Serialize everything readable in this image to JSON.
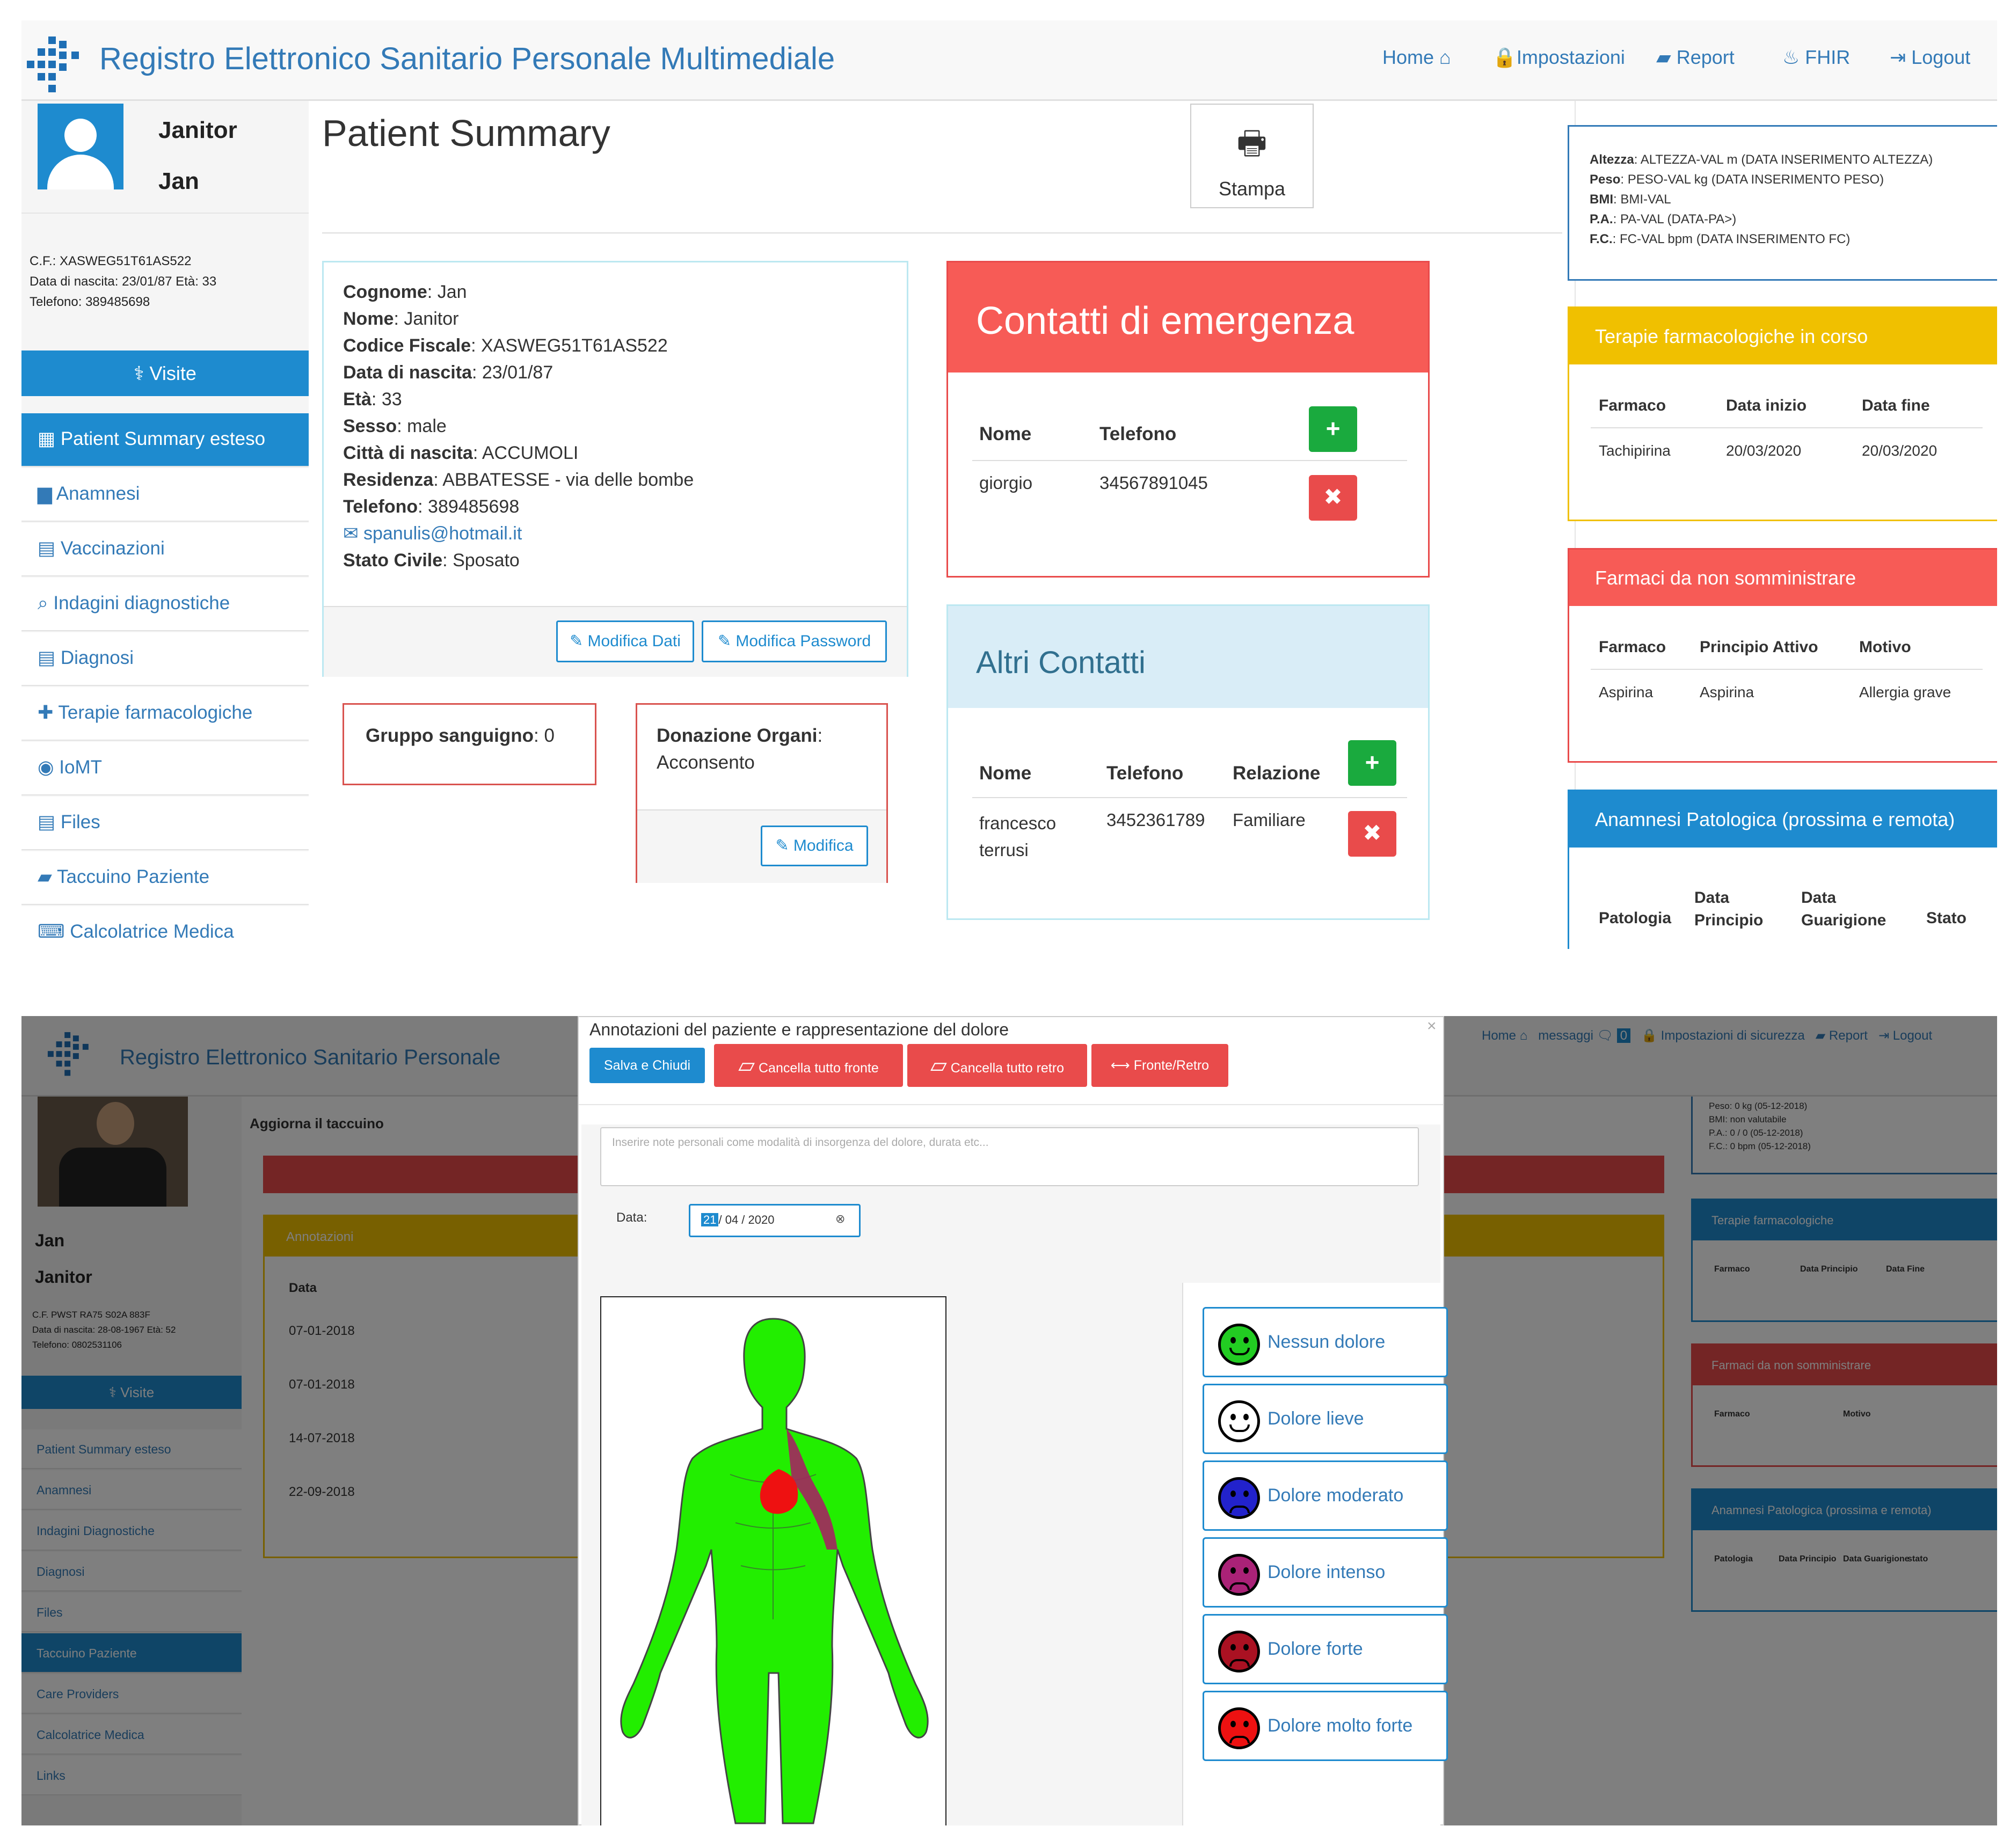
{
  "app": {
    "brand": "Registro Elettronico Sanitario Personale Multimediale",
    "nav": [
      {
        "label": "Home",
        "icon": "home-icon"
      },
      {
        "label": "Impostazioni",
        "icon": "lock-icon"
      },
      {
        "label": "Report",
        "icon": "book-icon"
      },
      {
        "label": "FHIR",
        "icon": "fire-icon"
      },
      {
        "label": "Logout",
        "icon": "logout-icon"
      }
    ]
  },
  "patient_card": {
    "first_name": "Janitor",
    "last_name": "Jan",
    "cf": "C.F.: XASWEG51T61AS522",
    "dob_line": "Data di nascita: 23/01/87 Età: 33",
    "phone_line": "Telefono: 389485698"
  },
  "sidebar": {
    "visits_label": "Visite",
    "items": [
      {
        "label": "Patient Summary esteso",
        "icon": "table-icon",
        "active": true
      },
      {
        "label": "Anamnesi",
        "icon": "archive-icon"
      },
      {
        "label": "Vaccinazioni",
        "icon": "file-icon"
      },
      {
        "label": "Indagini diagnostiche",
        "icon": "search-icon"
      },
      {
        "label": "Diagnosi",
        "icon": "file-icon"
      },
      {
        "label": "Terapie farmacologiche",
        "icon": "medkit-icon"
      },
      {
        "label": "IoMT",
        "icon": "globe-icon"
      },
      {
        "label": "Files",
        "icon": "file-icon"
      },
      {
        "label": "Taccuino Paziente",
        "icon": "book-icon"
      },
      {
        "label": "Calcolatrice Medica",
        "icon": "keyboard-icon"
      }
    ]
  },
  "main": {
    "title": "Patient Summary",
    "print_label": "Stampa",
    "details": [
      {
        "k": "Cognome",
        "v": "Jan"
      },
      {
        "k": "Nome",
        "v": "Janitor"
      },
      {
        "k": "Codice Fiscale",
        "v": "XASWEG51T61AS522"
      },
      {
        "k": "Data di nascita",
        "v": "23/01/87"
      },
      {
        "k": "Età",
        "v": "33"
      },
      {
        "k": "Sesso",
        "v": "male"
      },
      {
        "k": "Città di nascita",
        "v": "ACCUMOLI"
      },
      {
        "k": "Residenza",
        "v": "ABBATESSE  -  via delle bombe"
      },
      {
        "k": "Telefono",
        "v": "389485698"
      }
    ],
    "email": "spanulis@hotmail.it",
    "civil_key": "Stato Civile",
    "civil_val": "Sposato",
    "edit_data": "Modifica Dati",
    "edit_password": "Modifica Password",
    "blood_key": "Gruppo sanguigno",
    "blood_val": "0",
    "organ_key": "Donazione Organi",
    "organ_val": "Acconsento",
    "organ_edit": "Modifica"
  },
  "emergency": {
    "title": "Contatti di emergenza",
    "headers": [
      "Nome",
      "Telefono"
    ],
    "rows": [
      {
        "name": "giorgio",
        "phone": "34567891045"
      }
    ]
  },
  "others": {
    "title": "Altri Contatti",
    "headers": [
      "Nome",
      "Telefono",
      "Relazione"
    ],
    "rows": [
      {
        "name1": "francesco",
        "name2": "terrusi",
        "phone": "3452361789",
        "rel": "Familiare"
      }
    ]
  },
  "right": {
    "vitals": [
      {
        "k": "Altezza",
        "v": "ALTEZZA-VAL m (DATA INSERIMENTO ALTEZZA)"
      },
      {
        "k": "Peso",
        "v": "PESO-VAL kg (DATA INSERIMENTO PESO)"
      },
      {
        "k": "BMI",
        "v": "BMI-VAL"
      },
      {
        "k": "P.A.",
        "v": "PA-VAL (DATA-PA>)"
      },
      {
        "k": "F.C.",
        "v": "FC-VAL bpm (DATA INSERIMENTO FC)"
      }
    ],
    "therapies": {
      "title": "Terapie farmacologiche in corso",
      "headers": [
        "Farmaco",
        "Data inizio",
        "Data fine"
      ],
      "row": [
        "Tachipirina",
        "20/03/2020",
        "20/03/2020"
      ]
    },
    "nodrugs": {
      "title": "Farmaci da non somministrare",
      "headers": [
        "Farmaco",
        "Principio Attivo",
        "Motivo"
      ],
      "row": [
        "Aspirina",
        "Aspirina",
        "Allergia grave"
      ]
    },
    "anamnesis": {
      "title": "Anamnesi Patologica (prossima e remota)",
      "h1": "Patologia",
      "h2a": "Data",
      "h2b": "Principio",
      "h3a": "Data",
      "h3b": "Guarigione",
      "h4": "Stato"
    }
  },
  "bottom": {
    "brand": "Registro  Elettronico  Sanitario  Personale",
    "nav": [
      "Home",
      "messaggi",
      "0",
      "Impostazioni di sicurezza",
      "Report",
      "Logout"
    ],
    "patient": {
      "first": "Jan",
      "last": "Janitor",
      "cf": "C.F. PWST RA75 S02A 883F",
      "dob": "Data di nascita: 28-08-1967 Età: 52",
      "phone": "Telefono: 0802531106"
    },
    "visits_label": "Visite",
    "sidebar": [
      "Patient Summary esteso",
      "Anamnesi",
      "Indagini Diagnostiche",
      "Diagnosi",
      "Files",
      "Taccuino Paziente",
      "Care Providers",
      "Calcolatrice Medica",
      "Links"
    ],
    "back_title": "Taccuino Paziente",
    "update_label": "Aggiorna il taccuino",
    "annot_label": "Annotazioni",
    "data_col": "Data",
    "dates": [
      "07-01-2018",
      "07-01-2018",
      "14-07-2018",
      "22-09-2018"
    ],
    "right_vitals": [
      "Peso: 0 kg (05-12-2018)",
      "BMI: non valutabile",
      "P.A.: 0 / 0 (05-12-2018)",
      "F.C.: 0 bpm (05-12-2018)"
    ],
    "right_panels": [
      {
        "title": "Terapie farmacologiche",
        "cols": [
          "Farmaco",
          "Data Principio",
          "Data Fine"
        ]
      },
      {
        "title": "Farmaci da non somministrare",
        "cols": [
          "Farmaco",
          "Motivo"
        ]
      },
      {
        "title": "Anamnesi Patologica (prossima e remota)",
        "cols": [
          "Patologia",
          "Data Principio",
          "Data Guarigione",
          "stato"
        ]
      }
    ],
    "modal": {
      "title": "Annotazioni del paziente e rappresentazione del dolore",
      "save": "Salva e Chiudi",
      "clear_front": "Cancella tutto fronte",
      "clear_back": "Cancella tutto retro",
      "flip": "Fronte/Retro",
      "notes_placeholder": "Inserire note personali come modalità di insorgenza del dolore, durata etc...",
      "date_label": "Data:",
      "date_day": "21",
      "date_rest": "/ 04 / 2020",
      "pain": [
        {
          "label": "Nessun dolore",
          "color": "#22cc22"
        },
        {
          "label": "Dolore lieve",
          "color": "#ffffff"
        },
        {
          "label": "Dolore moderato",
          "color": "#2222cc"
        },
        {
          "label": "Dolore intenso",
          "color": "#aa2277"
        },
        {
          "label": "Dolore forte",
          "color": "#aa1122"
        },
        {
          "label": "Dolore molto forte",
          "color": "#ee1111"
        }
      ]
    }
  }
}
